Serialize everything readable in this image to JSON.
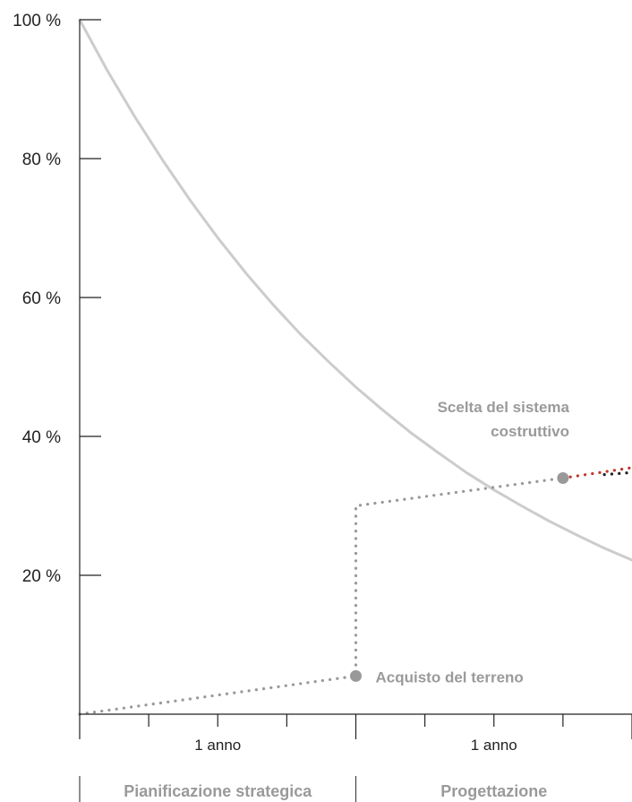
{
  "chart_data": {
    "type": "line",
    "title": "",
    "xlabel": "",
    "ylabel": "",
    "ylim": [
      0,
      100
    ],
    "xlim": [
      0,
      2
    ],
    "y_ticks": [
      "100 %",
      "80 %",
      "60 %",
      "40 %",
      "20 %"
    ],
    "y_tick_values": [
      100,
      80,
      60,
      40,
      20
    ],
    "x_minor_ticks": [
      0,
      0.25,
      0.5,
      0.75,
      1.0,
      1.25,
      1.5,
      1.75,
      2.0
    ],
    "categories": [
      "1 anno",
      "1 anno"
    ],
    "phases": [
      "Pianificazione strategica",
      "Progettazione"
    ],
    "grid": false,
    "series": [
      {
        "style": "solid",
        "color": "#cccccc",
        "x": [
          0,
          0.1,
          0.2,
          0.3,
          0.4,
          0.5,
          0.6,
          0.7,
          0.8,
          0.9,
          1.0,
          1.1,
          1.2,
          1.3,
          1.4,
          1.5,
          1.6,
          1.7,
          1.8,
          1.9,
          2.0
        ],
        "y": [
          100,
          92.7,
          86.0,
          79.8,
          74.0,
          68.6,
          63.6,
          59.0,
          54.7,
          50.8,
          47.1,
          43.7,
          40.5,
          37.6,
          34.8,
          32.3,
          30.0,
          27.8,
          25.8,
          23.9,
          22.2
        ]
      },
      {
        "style": "dotted",
        "color": "#999999",
        "x": [
          0,
          1.0,
          1.0,
          1.75
        ],
        "y": [
          0,
          5.5,
          30.0,
          34.0
        ]
      },
      {
        "style": "dotted",
        "color": "#c0392b",
        "x": [
          1.75,
          2.0
        ],
        "y": [
          34.0,
          35.5
        ]
      },
      {
        "style": "dotted",
        "color": "#222222",
        "x": [
          1.9,
          2.0
        ],
        "y": [
          34.5,
          34.8
        ]
      }
    ],
    "points": [
      {
        "x": 1.0,
        "y": 5.5,
        "label": "Acquisto del terreno"
      },
      {
        "x": 1.75,
        "y": 34.0,
        "label_lines": [
          "Scelta del sistema",
          "costruttivo"
        ]
      }
    ]
  }
}
